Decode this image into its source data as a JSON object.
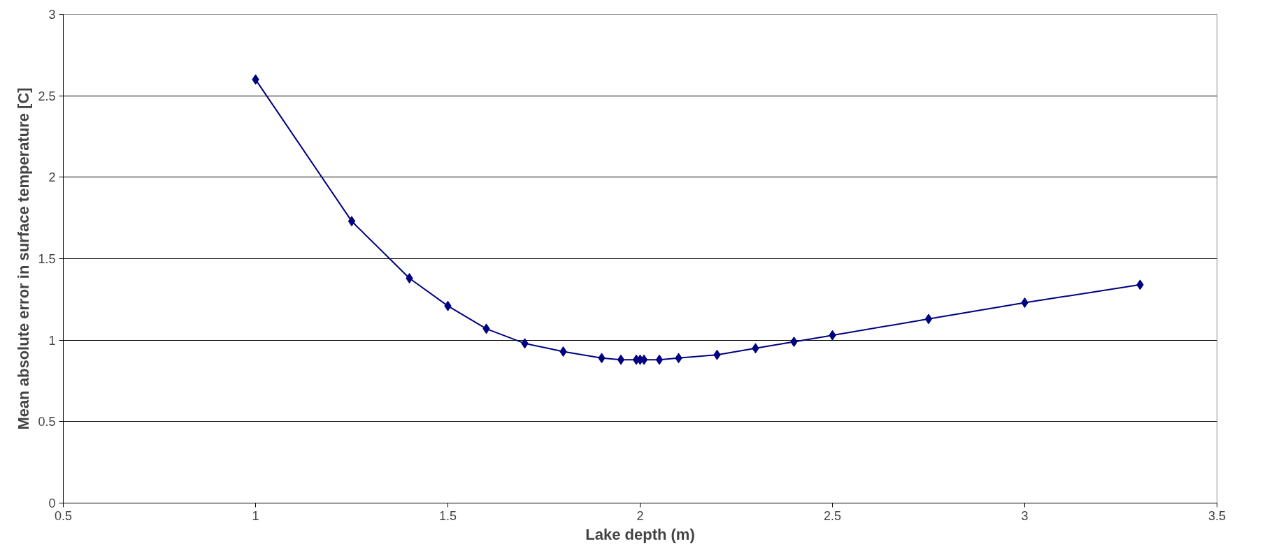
{
  "chart_data": {
    "type": "line",
    "xlabel": "Lake depth (m)",
    "ylabel": "Mean absolute error in surface temperature [C]",
    "x": [
      1,
      1.25,
      1.4,
      1.5,
      1.6,
      1.7,
      1.8,
      1.9,
      1.95,
      1.99,
      2.0,
      2.01,
      2.05,
      2.1,
      2.2,
      2.3,
      2.4,
      2.5,
      2.75,
      3.0,
      3.3
    ],
    "series": [
      {
        "color": "#000080",
        "values": [
          2.6,
          1.73,
          1.38,
          1.21,
          1.07,
          0.98,
          0.93,
          0.89,
          0.88,
          0.88,
          0.88,
          0.88,
          0.88,
          0.89,
          0.91,
          0.95,
          0.99,
          1.03,
          1.13,
          1.23,
          1.34
        ]
      }
    ],
    "xlim": [
      0.5,
      3.5
    ],
    "xticks": [
      0.5,
      1,
      1.5,
      2,
      2.5,
      3,
      3.5
    ],
    "ylim": [
      0,
      3
    ],
    "yticks": [
      0,
      0.5,
      1,
      1.5,
      2,
      2.5,
      3
    ],
    "grid": "y",
    "marker": "diamond",
    "line_style": "solid"
  }
}
